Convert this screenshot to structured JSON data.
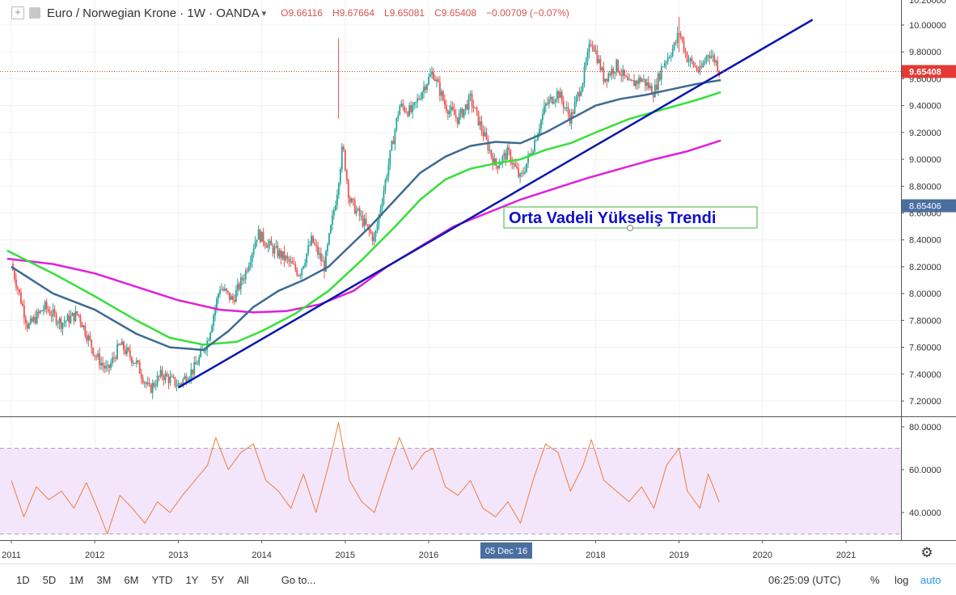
{
  "header": {
    "symbol_title": "Euro / Norwegian Krone · 1W · OANDA",
    "open": "O9.66116",
    "high": "H9.67664",
    "low": "L9.65081",
    "close": "C9.65408",
    "change": "−0.00709 (−0.07%)"
  },
  "colors": {
    "up": "#26a69a",
    "down": "#ef5350",
    "ma_fast": "#3d6b94",
    "ma_mid": "#36e03a",
    "ma_slow": "#e020d8",
    "trendline": "#0a17b0",
    "rsi": "#f07c3c",
    "rsi_band": "#f3e6fb",
    "last_price": "#e53935",
    "annotation_border": "#3ab53a",
    "annotation_text": "#1010c8"
  },
  "annotation": {
    "text": "Orta Vadeli Yükseliş Trendi"
  },
  "price_axis": {
    "ticks": [
      "10.00000",
      "9.80000",
      "9.60000",
      "9.40000",
      "9.20000",
      "9.00000",
      "8.80000",
      "8.60000",
      "8.40000",
      "8.20000",
      "8.00000",
      "7.80000",
      "7.60000",
      "7.40000",
      "7.20000"
    ],
    "last_price_label": "9.65408",
    "cursor_price_label": "8.65406",
    "top_cut_label": "10.20000"
  },
  "rsi_axis": {
    "ticks": [
      "80.0000",
      "60.0000",
      "40.0000"
    ]
  },
  "time_axis": {
    "labels": [
      "2011",
      "2012",
      "2013",
      "2014",
      "2015",
      "2016",
      "2018",
      "2019",
      "2020",
      "2021"
    ],
    "cursor_label": "05 Dec '16"
  },
  "toolbar": {
    "timeframes": [
      "1D",
      "5D",
      "1M",
      "3M",
      "6M",
      "YTD",
      "1Y",
      "5Y",
      "All"
    ],
    "goto": "Go to...",
    "clock": "06:25:09 (UTC)",
    "percent": "%",
    "log": "log",
    "auto": "auto"
  },
  "chart_data": {
    "type": "line",
    "ylim": [
      7.15,
      10.2
    ],
    "rsi_ylim": [
      25,
      85
    ],
    "rsi_bands": [
      30,
      70
    ],
    "price_path": [
      [
        2011.0,
        8.22
      ],
      [
        2011.2,
        7.75
      ],
      [
        2011.4,
        7.9
      ],
      [
        2011.6,
        7.78
      ],
      [
        2011.8,
        7.85
      ],
      [
        2012.0,
        7.55
      ],
      [
        2012.15,
        7.42
      ],
      [
        2012.3,
        7.62
      ],
      [
        2012.5,
        7.48
      ],
      [
        2012.65,
        7.28
      ],
      [
        2012.8,
        7.4
      ],
      [
        2013.0,
        7.32
      ],
      [
        2013.2,
        7.45
      ],
      [
        2013.35,
        7.65
      ],
      [
        2013.5,
        8.05
      ],
      [
        2013.65,
        7.95
      ],
      [
        2013.8,
        8.15
      ],
      [
        2013.95,
        8.45
      ],
      [
        2014.1,
        8.35
      ],
      [
        2014.3,
        8.25
      ],
      [
        2014.45,
        8.15
      ],
      [
        2014.6,
        8.4
      ],
      [
        2014.75,
        8.2
      ],
      [
        2014.9,
        8.75
      ],
      [
        2014.97,
        9.1
      ],
      [
        2015.05,
        8.7
      ],
      [
        2015.2,
        8.55
      ],
      [
        2015.35,
        8.4
      ],
      [
        2015.5,
        8.9
      ],
      [
        2015.65,
        9.4
      ],
      [
        2015.8,
        9.35
      ],
      [
        2015.95,
        9.55
      ],
      [
        2016.05,
        9.65
      ],
      [
        2016.2,
        9.4
      ],
      [
        2016.35,
        9.3
      ],
      [
        2016.5,
        9.45
      ],
      [
        2016.65,
        9.2
      ],
      [
        2016.8,
        8.95
      ],
      [
        2016.95,
        9.05
      ],
      [
        2017.1,
        8.85
      ],
      [
        2017.25,
        9.1
      ],
      [
        2017.4,
        9.4
      ],
      [
        2017.55,
        9.5
      ],
      [
        2017.7,
        9.3
      ],
      [
        2017.85,
        9.6
      ],
      [
        2017.95,
        9.9
      ],
      [
        2018.1,
        9.6
      ],
      [
        2018.25,
        9.7
      ],
      [
        2018.4,
        9.55
      ],
      [
        2018.55,
        9.6
      ],
      [
        2018.7,
        9.5
      ],
      [
        2018.8,
        9.7
      ],
      [
        2018.95,
        9.85
      ],
      [
        2019.0,
        9.95
      ],
      [
        2019.1,
        9.75
      ],
      [
        2019.25,
        9.65
      ],
      [
        2019.35,
        9.8
      ],
      [
        2019.45,
        9.72
      ],
      [
        2019.48,
        9.654
      ]
    ],
    "ma_fast": [
      [
        2011.0,
        8.2
      ],
      [
        2011.5,
        8.0
      ],
      [
        2012.0,
        7.88
      ],
      [
        2012.5,
        7.7
      ],
      [
        2012.9,
        7.6
      ],
      [
        2013.3,
        7.58
      ],
      [
        2013.6,
        7.72
      ],
      [
        2013.9,
        7.9
      ],
      [
        2014.2,
        8.02
      ],
      [
        2014.5,
        8.1
      ],
      [
        2014.8,
        8.2
      ],
      [
        2015.0,
        8.32
      ],
      [
        2015.3,
        8.5
      ],
      [
        2015.6,
        8.7
      ],
      [
        2015.9,
        8.9
      ],
      [
        2016.2,
        9.02
      ],
      [
        2016.5,
        9.1
      ],
      [
        2016.8,
        9.13
      ],
      [
        2017.1,
        9.12
      ],
      [
        2017.4,
        9.2
      ],
      [
        2017.7,
        9.3
      ],
      [
        2018.0,
        9.4
      ],
      [
        2018.3,
        9.45
      ],
      [
        2018.6,
        9.48
      ],
      [
        2018.9,
        9.52
      ],
      [
        2019.2,
        9.56
      ],
      [
        2019.5,
        9.59
      ]
    ],
    "ma_mid": [
      [
        2010.95,
        8.32
      ],
      [
        2011.5,
        8.15
      ],
      [
        2012.0,
        7.98
      ],
      [
        2012.5,
        7.8
      ],
      [
        2012.9,
        7.67
      ],
      [
        2013.3,
        7.62
      ],
      [
        2013.7,
        7.64
      ],
      [
        2014.0,
        7.72
      ],
      [
        2014.4,
        7.85
      ],
      [
        2014.8,
        8.02
      ],
      [
        2015.2,
        8.25
      ],
      [
        2015.6,
        8.5
      ],
      [
        2015.9,
        8.7
      ],
      [
        2016.2,
        8.85
      ],
      [
        2016.5,
        8.93
      ],
      [
        2016.8,
        8.97
      ],
      [
        2017.1,
        9.0
      ],
      [
        2017.4,
        9.07
      ],
      [
        2017.7,
        9.12
      ],
      [
        2018.0,
        9.2
      ],
      [
        2018.4,
        9.3
      ],
      [
        2018.8,
        9.37
      ],
      [
        2019.2,
        9.44
      ],
      [
        2019.5,
        9.5
      ]
    ],
    "ma_slow": [
      [
        2010.95,
        8.26
      ],
      [
        2011.5,
        8.22
      ],
      [
        2012.0,
        8.15
      ],
      [
        2012.5,
        8.05
      ],
      [
        2013.0,
        7.95
      ],
      [
        2013.5,
        7.88
      ],
      [
        2013.9,
        7.86
      ],
      [
        2014.3,
        7.87
      ],
      [
        2014.7,
        7.92
      ],
      [
        2015.1,
        8.02
      ],
      [
        2015.5,
        8.2
      ],
      [
        2015.9,
        8.35
      ],
      [
        2016.3,
        8.5
      ],
      [
        2016.7,
        8.6
      ],
      [
        2017.1,
        8.7
      ],
      [
        2017.5,
        8.78
      ],
      [
        2017.9,
        8.86
      ],
      [
        2018.3,
        8.93
      ],
      [
        2018.7,
        9.0
      ],
      [
        2019.1,
        9.06
      ],
      [
        2019.5,
        9.14
      ]
    ],
    "trendline": [
      [
        2013.0,
        7.3
      ],
      [
        2020.6,
        10.04
      ]
    ],
    "rsi": [
      [
        2011.0,
        55
      ],
      [
        2011.15,
        38
      ],
      [
        2011.3,
        52
      ],
      [
        2011.45,
        46
      ],
      [
        2011.6,
        50
      ],
      [
        2011.75,
        42
      ],
      [
        2011.9,
        54
      ],
      [
        2012.05,
        40
      ],
      [
        2012.15,
        30
      ],
      [
        2012.3,
        48
      ],
      [
        2012.45,
        42
      ],
      [
        2012.6,
        35
      ],
      [
        2012.75,
        45
      ],
      [
        2012.9,
        40
      ],
      [
        2013.05,
        48
      ],
      [
        2013.2,
        55
      ],
      [
        2013.35,
        62
      ],
      [
        2013.45,
        75
      ],
      [
        2013.6,
        60
      ],
      [
        2013.75,
        68
      ],
      [
        2013.9,
        72
      ],
      [
        2014.05,
        55
      ],
      [
        2014.2,
        50
      ],
      [
        2014.35,
        42
      ],
      [
        2014.5,
        58
      ],
      [
        2014.65,
        40
      ],
      [
        2014.8,
        62
      ],
      [
        2014.92,
        82
      ],
      [
        2015.05,
        55
      ],
      [
        2015.2,
        45
      ],
      [
        2015.35,
        40
      ],
      [
        2015.5,
        58
      ],
      [
        2015.65,
        75
      ],
      [
        2015.8,
        60
      ],
      [
        2015.95,
        68
      ],
      [
        2016.05,
        70
      ],
      [
        2016.2,
        52
      ],
      [
        2016.35,
        48
      ],
      [
        2016.5,
        55
      ],
      [
        2016.65,
        42
      ],
      [
        2016.8,
        38
      ],
      [
        2016.95,
        45
      ],
      [
        2017.1,
        35
      ],
      [
        2017.25,
        55
      ],
      [
        2017.4,
        72
      ],
      [
        2017.55,
        68
      ],
      [
        2017.7,
        50
      ],
      [
        2017.85,
        62
      ],
      [
        2017.95,
        74
      ],
      [
        2018.1,
        55
      ],
      [
        2018.25,
        50
      ],
      [
        2018.4,
        45
      ],
      [
        2018.55,
        52
      ],
      [
        2018.7,
        42
      ],
      [
        2018.85,
        62
      ],
      [
        2019.0,
        70
      ],
      [
        2019.1,
        50
      ],
      [
        2019.25,
        42
      ],
      [
        2019.35,
        58
      ],
      [
        2019.48,
        45
      ]
    ]
  }
}
